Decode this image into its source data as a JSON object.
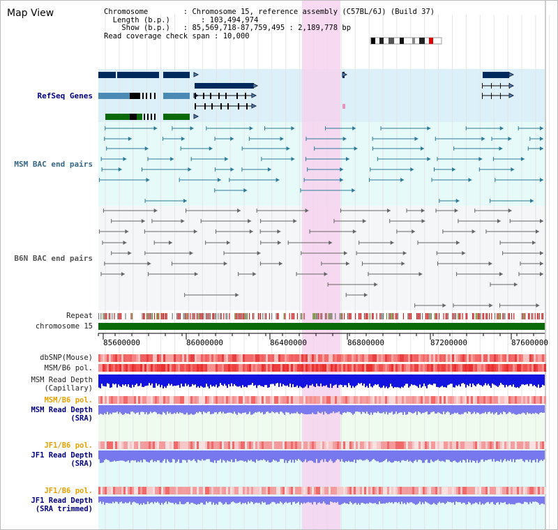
{
  "view": {
    "title": "Map View"
  },
  "info": {
    "chromosome_key": "Chromosome",
    "chromosome_val": "Chromosome 15, reference assembly (C57BL/6J) (Build 37)",
    "length_key": "Length (b.p.)",
    "length_val": "103,494,974",
    "show_key": "Show (b.p.)",
    "show_val": "85,569,718-87,759,495 : 2,189,778 bp",
    "read_key": "Read coverage check span",
    "read_val": "10,000"
  },
  "tracks": {
    "refseq": "RefSeq Genes",
    "msm_bac": "MSM BAC end pairs",
    "b6n_bac": "B6N BAC end pairs",
    "repeat": "Repeat",
    "chromosome": "chromosome 15",
    "dbsnp": "dbSNP(Mouse)",
    "msm_b6_pol": "MSM/B6 pol.",
    "msm_depth_cap_1": "MSM Read Depth",
    "msm_depth_cap_2": "(Capillary)",
    "msm_b6_pol_2": "MSM/B6 pol.",
    "msm_depth_sra_1": "MSM Read Depth",
    "msm_depth_sra_2": "(SRA)",
    "jf1_b6_pol": "JF1/B6 pol.",
    "jf1_depth_sra_1": "JF1 Read Depth",
    "jf1_depth_sra_2": "(SRA)",
    "jf1_b6_pol_2": "JF1/B6 pol.",
    "jf1_depth_trim_1": "JF1 Read Depth",
    "jf1_depth_trim_2": "(SRA trimmed)"
  },
  "axis": {
    "ticks": [
      "85600000",
      "86000000",
      "86400000",
      "86800000",
      "87200000",
      "87600000"
    ]
  },
  "colors": {
    "navy": "#002a5c",
    "steel": "#4a8ab5",
    "green": "#0a6a0a",
    "highlight": "#f6d2ef",
    "band_blue": "#dcf0fa",
    "band_teal": "#e6fafa",
    "band_gray": "#f4f6f8"
  }
}
